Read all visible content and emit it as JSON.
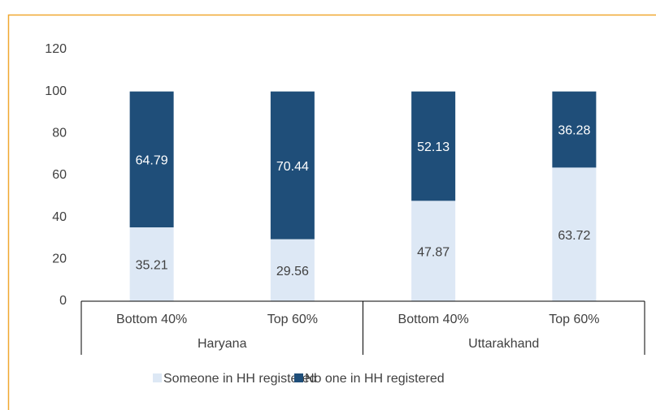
{
  "chart_data": {
    "type": "stacked_bar",
    "categories": [
      "Bottom 40%",
      "Top 60%",
      "Bottom 40%",
      "Top 60%"
    ],
    "group_labels": [
      "Haryana",
      "Uttarakhand"
    ],
    "series": [
      {
        "name": "Someone in HH registered",
        "color": "#dde8f5",
        "label_color": "#404040",
        "values": [
          35.21,
          29.56,
          47.87,
          63.72
        ]
      },
      {
        "name": "No one in HH registered",
        "color": "#1f4e79",
        "label_color": "#ffffff",
        "values": [
          64.79,
          70.44,
          52.13,
          36.28
        ]
      }
    ],
    "ylim": [
      0,
      120
    ],
    "yticks": [
      0,
      20,
      40,
      60,
      80,
      100,
      120
    ],
    "grid": false
  }
}
